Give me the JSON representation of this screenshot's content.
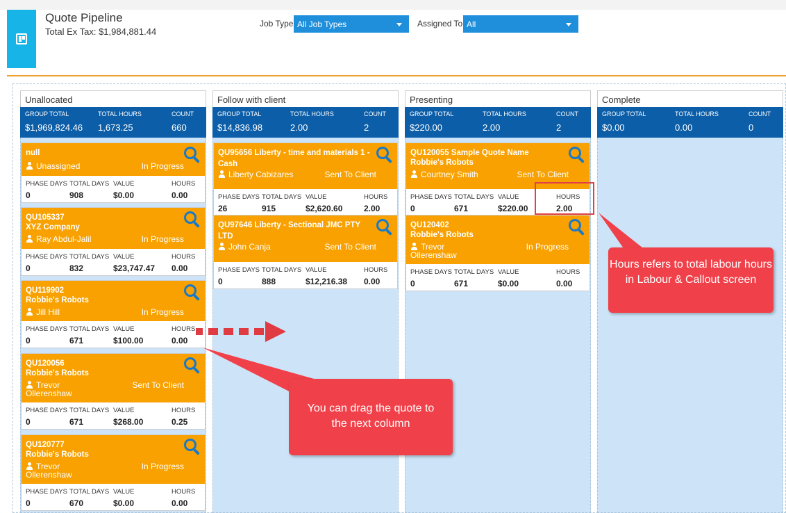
{
  "header": {
    "title": "Quote Pipeline",
    "total_ex_tax": "Total Ex Tax: $1,984,881.44",
    "job_type_label": "Job Type",
    "job_type_value": "All Job Types",
    "assigned_to_label": "Assigned To",
    "assigned_to_value": "All"
  },
  "stat_labels": {
    "group_total": "GROUP TOTAL",
    "total_hours": "TOTAL HOURS",
    "count": "COUNT"
  },
  "card_labels": {
    "phase_days": "PHASE DAYS",
    "total_days": "TOTAL DAYS",
    "value": "VALUE",
    "hours": "HOURS"
  },
  "columns": [
    {
      "title": "Unallocated",
      "group_total": "$1,969,824.46",
      "total_hours": "1,673.25",
      "count": "660",
      "cards": [
        {
          "id": "null",
          "client": "",
          "person": "Unassigned",
          "status": "In Progress",
          "phase_days": "0",
          "total_days": "908",
          "value": "$0.00",
          "hours": "0.00"
        },
        {
          "id": "QU105337",
          "client": "XYZ Company",
          "person": "Ray Abdul-Jalil",
          "status": "In Progress",
          "phase_days": "0",
          "total_days": "832",
          "value": "$23,747.47",
          "hours": "0.00"
        },
        {
          "id": "QU119902",
          "client": "Robbie's Robots",
          "person": "Jill Hill",
          "status": "In Progress",
          "phase_days": "0",
          "total_days": "671",
          "value": "$100.00",
          "hours": "0.00"
        },
        {
          "id": "QU120056",
          "client": "Robbie's Robots",
          "person": "Trevor Ollerenshaw",
          "status": "Sent To Client",
          "phase_days": "0",
          "total_days": "671",
          "value": "$268.00",
          "hours": "0.25"
        },
        {
          "id": "QU120777",
          "client": "Robbie's Robots",
          "person": "Trevor Ollerenshaw",
          "status": "In Progress",
          "phase_days": "0",
          "total_days": "670",
          "value": "$0.00",
          "hours": "0.00"
        }
      ]
    },
    {
      "title": "Follow with client",
      "group_total": "$14,836.98",
      "total_hours": "2.00",
      "count": "2",
      "cards": [
        {
          "id": "QU95656 Liberty - time and materials 1 - Cash",
          "client": "",
          "person": "Liberty Cabizares",
          "status": "Sent To Client",
          "phase_days": "26",
          "total_days": "915",
          "value": "$2,620.60",
          "hours": "2.00"
        },
        {
          "id": "QU97646 Liberty - Sectional JMC PTY LTD",
          "client": "",
          "person": "John Canja",
          "status": "Sent To Client",
          "phase_days": "0",
          "total_days": "888",
          "value": "$12,216.38",
          "hours": "0.00"
        }
      ]
    },
    {
      "title": "Presenting",
      "group_total": "$220.00",
      "total_hours": "2.00",
      "count": "2",
      "cards": [
        {
          "id": "QU120055 Sample Quote Name",
          "client": "Robbie's Robots",
          "person": "Courtney Smith",
          "status": "Sent To Client",
          "phase_days": "0",
          "total_days": "671",
          "value": "$220.00",
          "hours": "2.00"
        },
        {
          "id": "QU120402",
          "client": "Robbie's Robots",
          "person": "Trevor Ollerenshaw",
          "status": "In Progress",
          "phase_days": "0",
          "total_days": "671",
          "value": "$0.00",
          "hours": "0.00"
        }
      ]
    },
    {
      "title": "Complete",
      "group_total": "$0.00",
      "total_hours": "0.00",
      "count": "0",
      "cards": []
    }
  ],
  "callouts": {
    "hours": "Hours refers to total labour hours in Labour & Callout screen",
    "drag": "You can drag the quote to the next column"
  },
  "colors": {
    "accent_blue": "#0c5ea8",
    "card_orange": "#f8a100",
    "column_bg": "#cde4f8",
    "callout_red": "#f0414a"
  }
}
